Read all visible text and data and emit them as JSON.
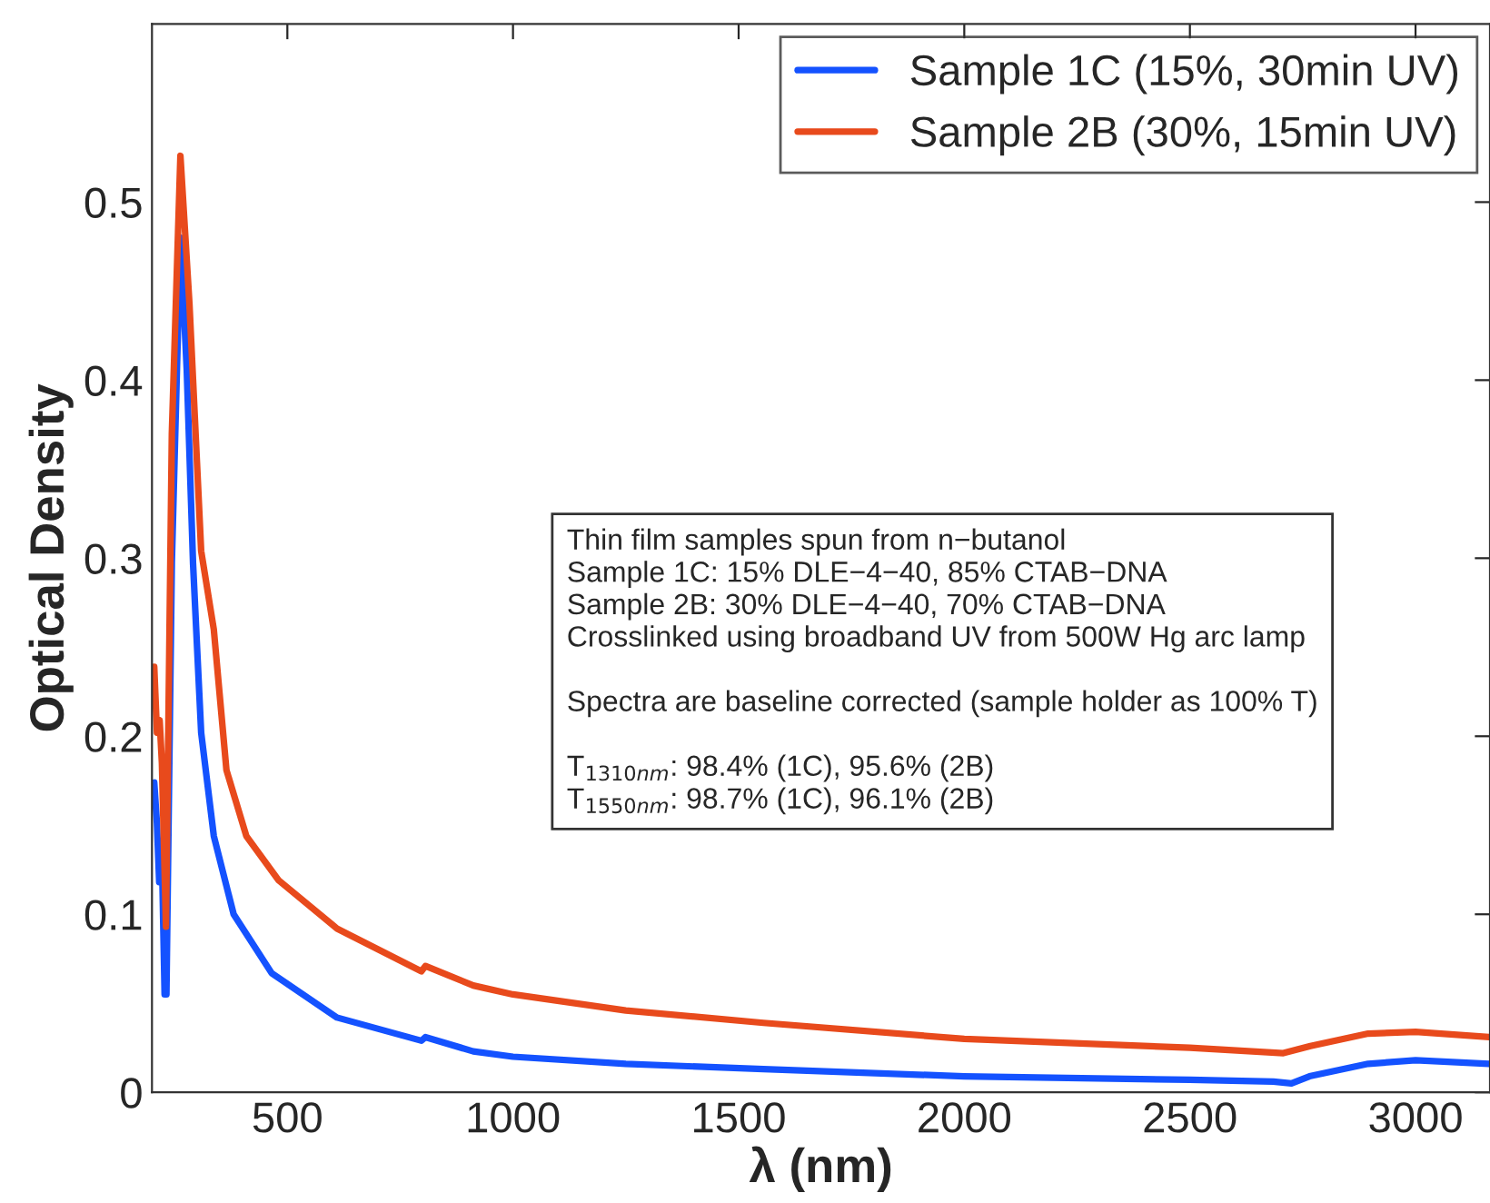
{
  "chart_data": {
    "type": "line",
    "xlabel": "λ (nm)",
    "ylabel": "Optical Density",
    "xlim": [
      200,
      3165
    ],
    "ylim": [
      0,
      0.6
    ],
    "xticks": [
      500,
      1000,
      1500,
      2000,
      2500,
      3000
    ],
    "yticks": [
      0,
      0.1,
      0.2,
      0.3,
      0.4,
      0.5
    ],
    "grid": false,
    "legend": "top right",
    "line_style": "solid",
    "marker": "none",
    "series": [
      {
        "name": "Sample 1C (15%, 30min UV)",
        "color": "#1452ff",
        "x": [
          205,
          211,
          216,
          222,
          228,
          232,
          244,
          263,
          277,
          291,
          309,
          337,
          381,
          465,
          610,
          797,
          806,
          912,
          1000,
          1250,
          1555,
          2000,
          2500,
          2685,
          2725,
          2765,
          2895,
          3000,
          3163
        ],
        "values": [
          0.174,
          0.151,
          0.118,
          0.133,
          0.055,
          0.055,
          0.297,
          0.48,
          0.406,
          0.297,
          0.202,
          0.144,
          0.1,
          0.067,
          0.042,
          0.029,
          0.031,
          0.023,
          0.02,
          0.016,
          0.013,
          0.009,
          0.007,
          0.006,
          0.005,
          0.009,
          0.016,
          0.018,
          0.016
        ]
      },
      {
        "name": "Sample 2B (30%, 15min UV)",
        "color": "#e84a1c",
        "x": [
          205,
          211,
          217,
          222,
          231,
          244,
          263,
          283,
          309,
          337,
          365,
          409,
          481,
          610,
          797,
          806,
          912,
          1000,
          1250,
          1555,
          2000,
          2500,
          2707,
          2767,
          2895,
          3000,
          3163
        ],
        "values": [
          0.239,
          0.202,
          0.209,
          0.185,
          0.093,
          0.37,
          0.526,
          0.443,
          0.304,
          0.26,
          0.181,
          0.144,
          0.119,
          0.092,
          0.068,
          0.071,
          0.06,
          0.055,
          0.046,
          0.039,
          0.03,
          0.025,
          0.022,
          0.026,
          0.033,
          0.034,
          0.031
        ]
      }
    ],
    "annotations": [
      "Thin film samples spun from n−butanol\nSample 1C: 15% DLE−4−40, 85% CTAB−DNA\nSample 2B: 30% DLE−4−40, 70% CTAB−DNA\nCrosslinked using broadband UV from 500W Hg arc lamp",
      "Spectra are baseline corrected (sample holder as 100% T)",
      "T$_{1310nm}$: 98.4% (1C), 95.6% (2B)\nT$_{1550nm}$: 98.7% (1C), 96.1% (2B)"
    ]
  }
}
